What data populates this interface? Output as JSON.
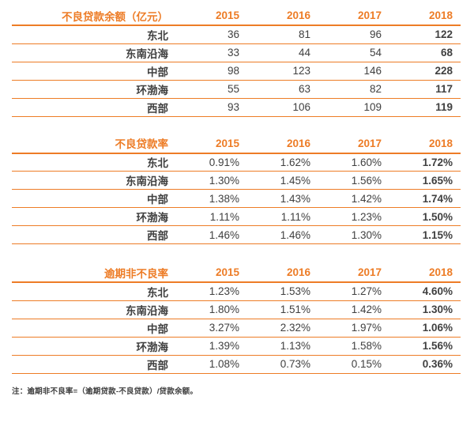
{
  "accent_color": "#ED7C26",
  "value_text_color": "#404040",
  "label_text_color": "#1A1A1A",
  "note": "注：逾期非不良率=（逾期贷款-不良贷款）/贷款余额。",
  "chart_data": [
    {
      "type": "table",
      "title": "不良贷款余额（亿元）",
      "columns": [
        "2015",
        "2016",
        "2017",
        "2018"
      ],
      "rows": [
        {
          "label": "东北",
          "values": [
            "36",
            "81",
            "96",
            "122"
          ]
        },
        {
          "label": "东南沿海",
          "values": [
            "33",
            "44",
            "54",
            "68"
          ]
        },
        {
          "label": "中部",
          "values": [
            "98",
            "123",
            "146",
            "228"
          ]
        },
        {
          "label": "环渤海",
          "values": [
            "55",
            "63",
            "82",
            "117"
          ]
        },
        {
          "label": "西部",
          "values": [
            "93",
            "106",
            "109",
            "119"
          ]
        }
      ]
    },
    {
      "type": "table",
      "title": "不良贷款率",
      "columns": [
        "2015",
        "2016",
        "2017",
        "2018"
      ],
      "rows": [
        {
          "label": "东北",
          "values": [
            "0.91%",
            "1.62%",
            "1.60%",
            "1.72%"
          ]
        },
        {
          "label": "东南沿海",
          "values": [
            "1.30%",
            "1.45%",
            "1.56%",
            "1.65%"
          ]
        },
        {
          "label": "中部",
          "values": [
            "1.38%",
            "1.43%",
            "1.42%",
            "1.74%"
          ]
        },
        {
          "label": "环渤海",
          "values": [
            "1.11%",
            "1.11%",
            "1.23%",
            "1.50%"
          ]
        },
        {
          "label": "西部",
          "values": [
            "1.46%",
            "1.46%",
            "1.30%",
            "1.15%"
          ]
        }
      ]
    },
    {
      "type": "table",
      "title": "逾期非不良率",
      "columns": [
        "2015",
        "2016",
        "2017",
        "2018"
      ],
      "rows": [
        {
          "label": "东北",
          "values": [
            "1.23%",
            "1.53%",
            "1.27%",
            "4.60%"
          ]
        },
        {
          "label": "东南沿海",
          "values": [
            "1.80%",
            "1.51%",
            "1.42%",
            "1.30%"
          ]
        },
        {
          "label": "中部",
          "values": [
            "3.27%",
            "2.32%",
            "1.97%",
            "1.06%"
          ]
        },
        {
          "label": "环渤海",
          "values": [
            "1.39%",
            "1.13%",
            "1.58%",
            "1.56%"
          ]
        },
        {
          "label": "西部",
          "values": [
            "1.08%",
            "0.73%",
            "0.15%",
            "0.36%"
          ]
        }
      ]
    }
  ]
}
